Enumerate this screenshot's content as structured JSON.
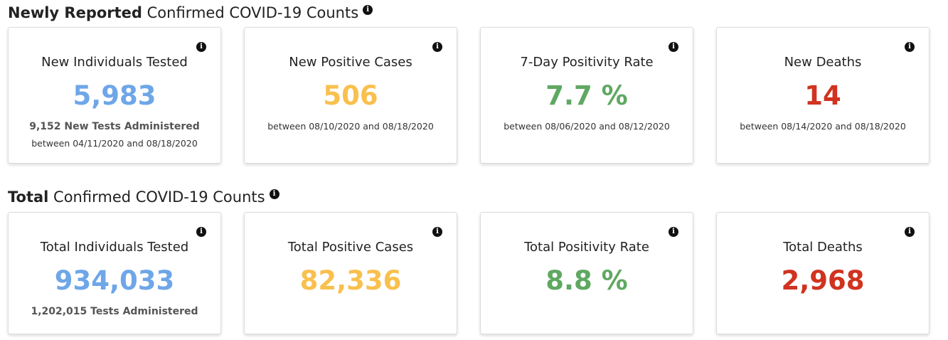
{
  "colors": {
    "blue": "#6ea6e8",
    "orange": "#f9c04d",
    "green": "#5fa862",
    "red": "#d0331f"
  },
  "sections": {
    "new": {
      "title_bold": "Newly Reported",
      "title_rest": " Confirmed COVID-19 Counts",
      "cards": [
        {
          "title": "New Individuals Tested",
          "value": "5,983",
          "sub_bold": "9,152 New Tests Administered",
          "sub": "between 04/11/2020 and 08/18/2020"
        },
        {
          "title": "New Positive Cases",
          "value": "506",
          "sub": "between 08/10/2020 and 08/18/2020"
        },
        {
          "title": "7-Day Positivity Rate",
          "value": "7.7 %",
          "sub": "between 08/06/2020 and 08/12/2020"
        },
        {
          "title": "New Deaths",
          "value": "14",
          "sub": "between 08/14/2020 and 08/18/2020"
        }
      ]
    },
    "total": {
      "title_bold": "Total",
      "title_rest": " Confirmed COVID-19 Counts",
      "cards": [
        {
          "title": "Total Individuals Tested",
          "value": "934,033",
          "sub_bold": "1,202,015 Tests Administered"
        },
        {
          "title": "Total Positive Cases",
          "value": "82,336"
        },
        {
          "title": "Total Positivity Rate",
          "value": "8.8 %"
        },
        {
          "title": "Total Deaths",
          "value": "2,968"
        }
      ]
    }
  },
  "info_glyph": "i"
}
